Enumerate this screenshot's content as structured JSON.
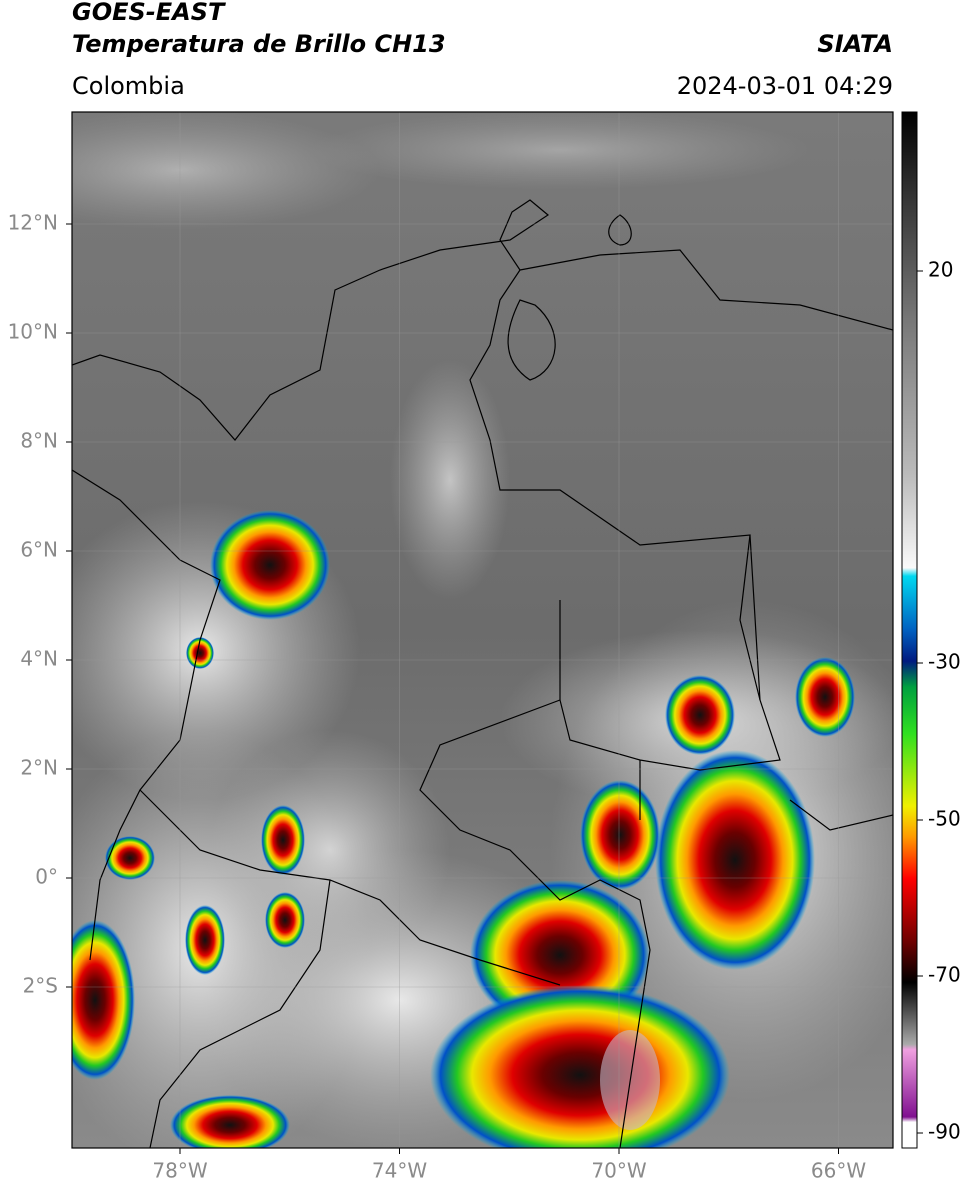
{
  "header": {
    "title": "GOES-EAST",
    "subtitle": "Temperatura de Brillo CH13",
    "source": "SIATA",
    "region": "Colombia",
    "datetime": "2024-03-01 04:29"
  },
  "map": {
    "lat_labels": [
      "12°N",
      "10°N",
      "8°N",
      "6°N",
      "4°N",
      "2°N",
      "0°",
      "2°S"
    ],
    "lon_labels": [
      "78°W",
      "74°W",
      "70°W",
      "66°W"
    ]
  },
  "colorbar": {
    "ticks": [
      20,
      -30,
      -50,
      -70,
      -90
    ]
  }
}
